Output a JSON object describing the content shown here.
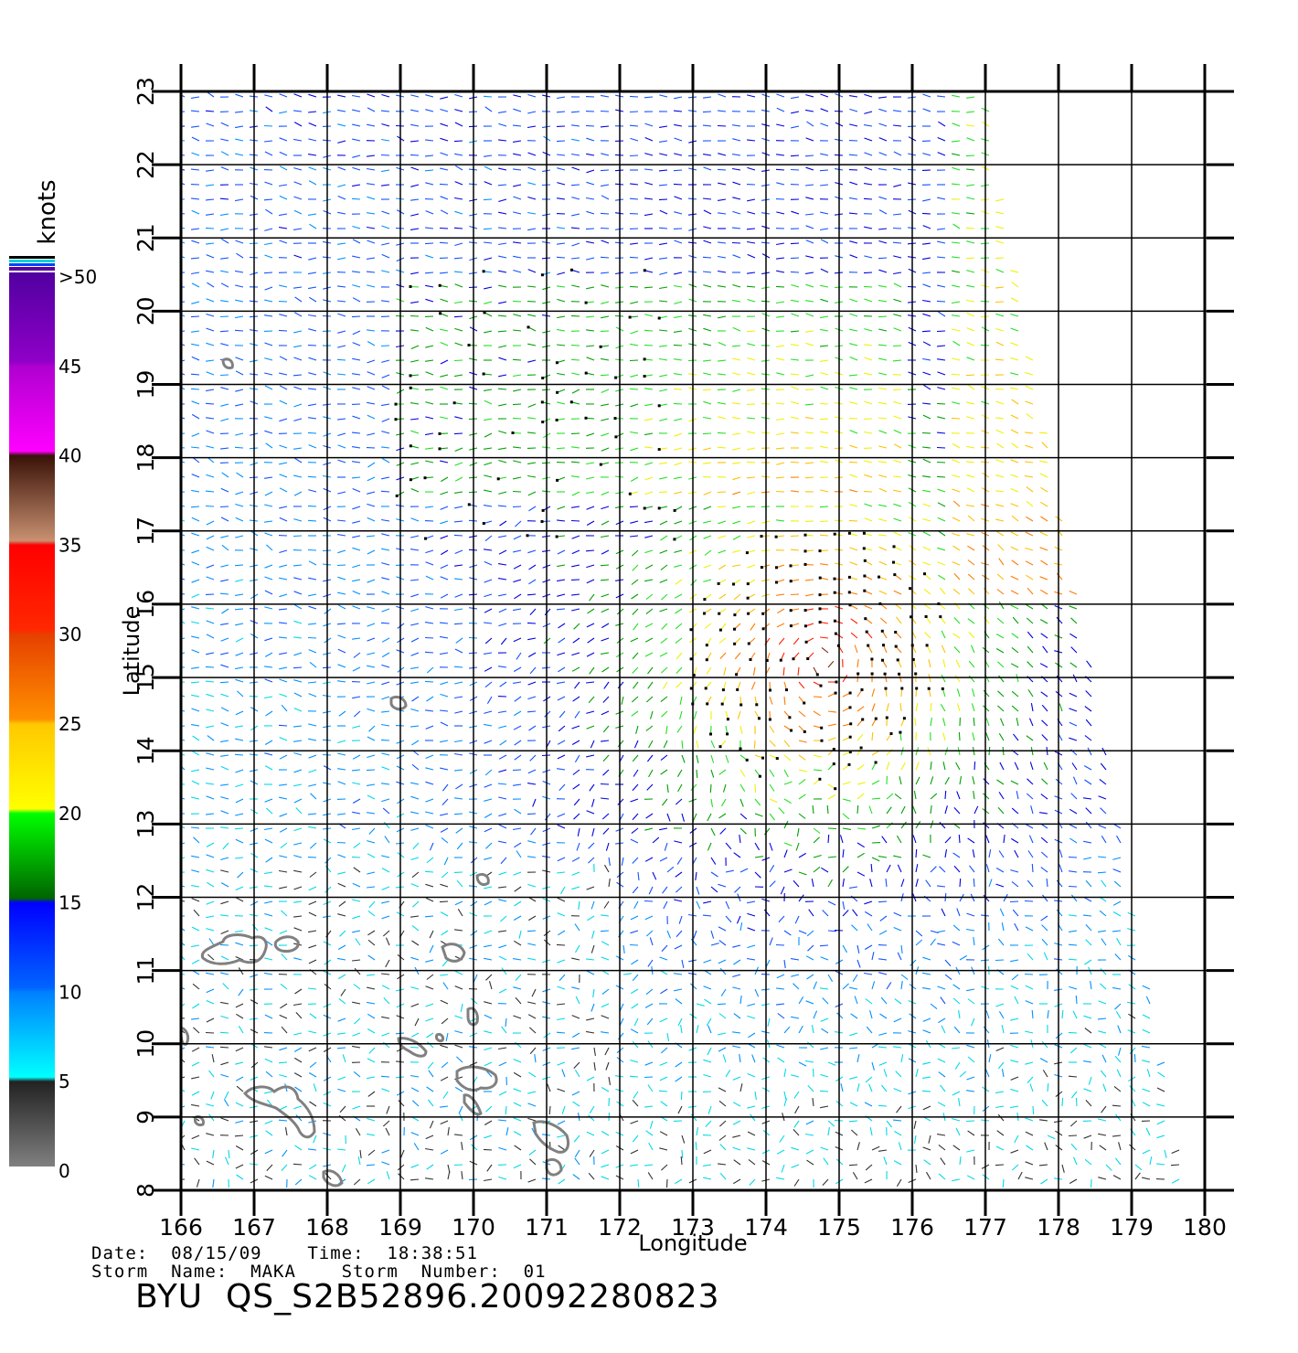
{
  "map": {
    "lon_ticks": [
      "166",
      "167",
      "168",
      "169",
      "170",
      "171",
      "172",
      "173",
      "174",
      "175",
      "176",
      "177",
      "178",
      "179",
      "180"
    ],
    "lat_ticks": [
      "8",
      "9",
      "10",
      "11",
      "12",
      "13",
      "14",
      "15",
      "16",
      "17",
      "18",
      "19",
      "20",
      "21",
      "22",
      "23"
    ],
    "lon_range": [
      166,
      180.5
    ],
    "lat_range": [
      8,
      23
    ],
    "xlabel": "Longitude",
    "ylabel": "Latitude",
    "storm_center": {
      "lon": 174.8,
      "lat": 15.3
    },
    "land_contour_color": "#808080",
    "grid_color": "#000000"
  },
  "colorbar": {
    "unit": "knots",
    "labels": [
      ">50",
      "45",
      "40",
      "35",
      "30",
      "25",
      "20",
      "15",
      "10",
      "5",
      "0"
    ],
    "bands": [
      {
        "range": "0-5",
        "colors": [
          "#808080",
          "#1a1a1a"
        ]
      },
      {
        "range": "5-10",
        "colors": [
          "#00ffff",
          "#0096ff"
        ]
      },
      {
        "range": "10-15",
        "colors": [
          "#0064ff",
          "#0000ff"
        ]
      },
      {
        "range": "15-20",
        "colors": [
          "#007800",
          "#00ff00"
        ]
      },
      {
        "range": "20-25",
        "colors": [
          "#ffff00",
          "#ffc800"
        ]
      },
      {
        "range": "25-30",
        "colors": [
          "#ff9600",
          "#e64600"
        ]
      },
      {
        "range": "30-35",
        "colors": [
          "#ff1e00",
          "#ff0000"
        ]
      },
      {
        "range": "35-40",
        "colors": [
          "#c08060",
          "#3a1208"
        ]
      },
      {
        "range": "40-50",
        "colors": [
          "#ff00ff",
          "#a000c8"
        ]
      },
      {
        "range": ">50",
        "colors": [
          "#8c00c8",
          "#5a00a0"
        ]
      }
    ]
  },
  "footer": {
    "date_line": "Date:  08/15/09    Time:  18:38:51",
    "storm_line": "Storm  Name:  MAKA    Storm  Number:  01",
    "file_id": "BYU  QS_S2B52896.20092280823"
  }
}
